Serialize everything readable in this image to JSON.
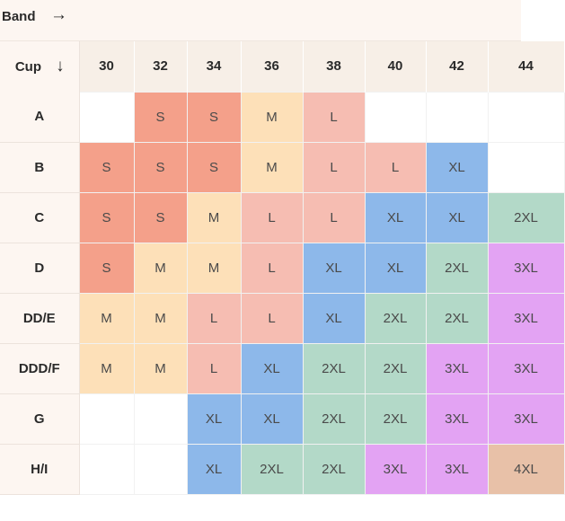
{
  "header": {
    "band_label": "Band",
    "band_arrow": "→",
    "cup_label": "Cup",
    "cup_arrow": "↓"
  },
  "colors": {
    "S": "#f4a08a",
    "M": "#fde0b8",
    "L": "#f6bdb2",
    "XL": "#8db8ea",
    "2XL": "#b3d9c8",
    "3XL": "#e3a3f3",
    "4XL": "#e8c1a8",
    "empty": "#ffffff"
  },
  "bands": [
    "30",
    "32",
    "34",
    "36",
    "38",
    "40",
    "42",
    "44"
  ],
  "rows": [
    {
      "cup": "A",
      "sizes": [
        "",
        "S",
        "S",
        "M",
        "L",
        "",
        "",
        ""
      ]
    },
    {
      "cup": "B",
      "sizes": [
        "S",
        "S",
        "S",
        "M",
        "L",
        "L",
        "XL",
        ""
      ]
    },
    {
      "cup": "C",
      "sizes": [
        "S",
        "S",
        "M",
        "L",
        "L",
        "XL",
        "XL",
        "2XL"
      ]
    },
    {
      "cup": "D",
      "sizes": [
        "S",
        "M",
        "M",
        "L",
        "XL",
        "XL",
        "2XL",
        "3XL"
      ]
    },
    {
      "cup": "DD/E",
      "sizes": [
        "M",
        "M",
        "L",
        "L",
        "XL",
        "2XL",
        "2XL",
        "3XL"
      ]
    },
    {
      "cup": "DDD/F",
      "sizes": [
        "M",
        "M",
        "L",
        "XL",
        "2XL",
        "2XL",
        "3XL",
        "3XL"
      ]
    },
    {
      "cup": "G",
      "sizes": [
        "",
        "",
        "XL",
        "XL",
        "2XL",
        "2XL",
        "3XL",
        "3XL"
      ]
    },
    {
      "cup": "H/I",
      "sizes": [
        "",
        "",
        "XL",
        "2XL",
        "2XL",
        "3XL",
        "3XL",
        "4XL"
      ]
    }
  ]
}
